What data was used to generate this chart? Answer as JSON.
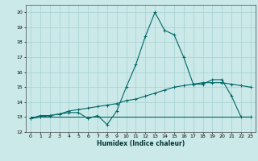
{
  "xlabel": "Humidex (Indice chaleur)",
  "background_color": "#cce9e9",
  "grid_color": "#aad4d4",
  "line_color": "#006666",
  "xlim": [
    -0.5,
    23.5
  ],
  "ylim": [
    12,
    20.5
  ],
  "yticks": [
    12,
    13,
    14,
    15,
    16,
    17,
    18,
    19,
    20
  ],
  "xticks": [
    0,
    1,
    2,
    3,
    4,
    5,
    6,
    7,
    8,
    9,
    10,
    11,
    12,
    13,
    14,
    15,
    16,
    17,
    18,
    19,
    20,
    21,
    22,
    23
  ],
  "line1_x": [
    0,
    1,
    2,
    3,
    4,
    5,
    6,
    7,
    8,
    9,
    10,
    11,
    12,
    13,
    14,
    15,
    16,
    17,
    18,
    19,
    20,
    21,
    22,
    23
  ],
  "line1_y": [
    12.9,
    13.1,
    13.1,
    13.2,
    13.3,
    13.3,
    12.9,
    13.1,
    12.5,
    13.4,
    15.0,
    16.5,
    18.4,
    20.0,
    18.8,
    18.5,
    17.0,
    15.2,
    15.2,
    15.5,
    15.5,
    14.4,
    13.0,
    13.0
  ],
  "line2_x": [
    0,
    1,
    2,
    3,
    4,
    5,
    6,
    7,
    8,
    9,
    10,
    11,
    12,
    13,
    14,
    15,
    16,
    17,
    18,
    19,
    20,
    21,
    22,
    23
  ],
  "line2_y": [
    12.9,
    13.0,
    13.1,
    13.2,
    13.4,
    13.5,
    13.6,
    13.7,
    13.8,
    13.9,
    14.1,
    14.2,
    14.4,
    14.6,
    14.8,
    15.0,
    15.1,
    15.2,
    15.3,
    15.3,
    15.3,
    15.2,
    15.1,
    15.0
  ],
  "line3_x": [
    0,
    23
  ],
  "line3_y": [
    13.0,
    13.0
  ],
  "tick_fontsize": 4.5,
  "xlabel_fontsize": 5.5
}
